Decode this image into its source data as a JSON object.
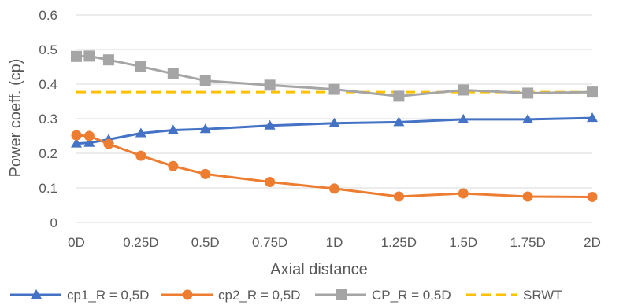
{
  "chart_data": {
    "type": "line",
    "title": "",
    "xlabel": "Axial distance",
    "ylabel": "Power coeff. (cp)",
    "x": [
      0,
      0.05,
      0.125,
      0.25,
      0.375,
      0.5,
      0.75,
      1,
      1.25,
      1.5,
      1.75,
      2
    ],
    "xticks": [
      {
        "value": 0,
        "label": "0D"
      },
      {
        "value": 0.25,
        "label": "0.25D"
      },
      {
        "value": 0.5,
        "label": "0.5D"
      },
      {
        "value": 0.75,
        "label": "0.75D"
      },
      {
        "value": 1,
        "label": "1D"
      },
      {
        "value": 1.25,
        "label": "1.25D"
      },
      {
        "value": 1.5,
        "label": "1.5D"
      },
      {
        "value": 1.75,
        "label": "1.75D"
      },
      {
        "value": 2,
        "label": "2D"
      }
    ],
    "xlim": [
      0,
      2
    ],
    "yticks": [
      {
        "value": 0,
        "label": "0"
      },
      {
        "value": 0.1,
        "label": "0.1"
      },
      {
        "value": 0.2,
        "label": "0.2"
      },
      {
        "value": 0.3,
        "label": "0.3"
      },
      {
        "value": 0.4,
        "label": "0.4"
      },
      {
        "value": 0.5,
        "label": "0.5"
      },
      {
        "value": 0.6,
        "label": "0.6"
      }
    ],
    "ylim": [
      0,
      0.6
    ],
    "grid": "horizontal",
    "legend_position": "bottom",
    "series": [
      {
        "name": "cp1_R = 0,5D",
        "color": "#4472C4",
        "marker": "triangle",
        "dashed": false,
        "values": [
          0.228,
          0.23,
          0.24,
          0.258,
          0.267,
          0.27,
          0.28,
          0.287,
          0.29,
          0.298,
          0.298,
          0.302
        ]
      },
      {
        "name": "cp2_R = 0,5D",
        "color": "#ED7D31",
        "marker": "circle",
        "dashed": false,
        "values": [
          0.252,
          0.25,
          0.227,
          0.193,
          0.163,
          0.14,
          0.117,
          0.098,
          0.075,
          0.084,
          0.075,
          0.074
        ]
      },
      {
        "name": "CP_R = 0,5D",
        "color": "#A5A5A5",
        "marker": "square",
        "dashed": false,
        "values": [
          0.48,
          0.481,
          0.47,
          0.451,
          0.43,
          0.41,
          0.397,
          0.385,
          0.365,
          0.383,
          0.374,
          0.377
        ]
      },
      {
        "name": "SRWT",
        "color": "#FFC000",
        "marker": "none",
        "dashed": true,
        "values": [
          0.377,
          0.377,
          0.377,
          0.377,
          0.377,
          0.377,
          0.377,
          0.377,
          0.377,
          0.377,
          0.377,
          0.377
        ]
      }
    ]
  }
}
